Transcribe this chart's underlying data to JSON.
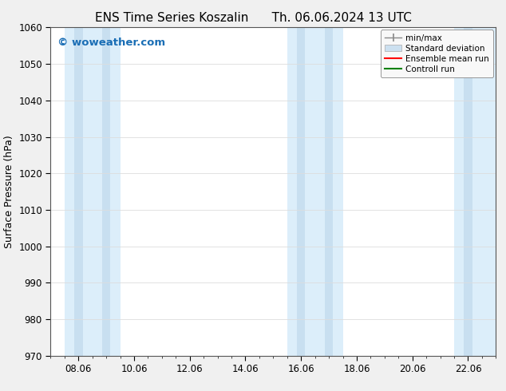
{
  "title_left": "ENS Time Series Koszalin",
  "title_right": "Th. 06.06.2024 13 UTC",
  "ylabel": "Surface Pressure (hPa)",
  "ylim": [
    970,
    1060
  ],
  "yticks": [
    970,
    980,
    990,
    1000,
    1010,
    1020,
    1030,
    1040,
    1050,
    1060
  ],
  "xtick_labels": [
    "08.06",
    "10.06",
    "12.06",
    "14.06",
    "16.06",
    "18.06",
    "20.06",
    "22.06"
  ],
  "xtick_positions": [
    1.0,
    3.0,
    5.0,
    7.0,
    9.0,
    11.0,
    13.0,
    15.0
  ],
  "xlim": [
    0.0,
    16.0
  ],
  "background_color": "#f0f0f0",
  "plot_bg_color": "#ffffff",
  "band_color_outer": "#d6e8f7",
  "band_color_inner": "#c8dff2",
  "watermark_text": "© woweather.com",
  "watermark_color": "#1a6eb5",
  "shaded_bands": [
    {
      "x_start": 0.5,
      "x_end": 1.5,
      "x_inner_start": 0.9,
      "x_inner_end": 1.4
    },
    {
      "x_start": 1.5,
      "x_end": 2.5,
      "x_inner_start": 1.6,
      "x_inner_end": 2.4
    },
    {
      "x_start": 8.5,
      "x_end": 10.5,
      "x_inner_start": 9.0,
      "x_inner_end": 9.9
    },
    {
      "x_start": 14.5,
      "x_end": 16.0,
      "x_inner_start": 14.8,
      "x_inner_end": 15.8
    }
  ],
  "legend_labels": [
    "min/max",
    "Standard deviation",
    "Ensemble mean run",
    "Controll run"
  ],
  "legend_colors": [
    "#aaaaaa",
    "#cce0f0",
    "#ff0000",
    "#008000"
  ],
  "grid_color": "#dddddd",
  "tick_color": "#000000",
  "title_fontsize": 11,
  "label_fontsize": 9,
  "tick_fontsize": 8.5
}
